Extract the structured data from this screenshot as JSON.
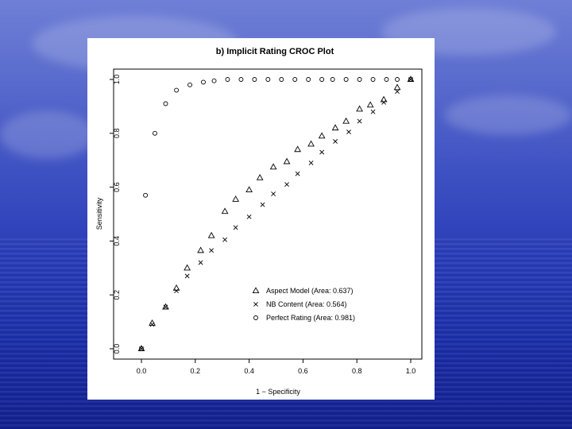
{
  "chart_data": {
    "type": "scatter",
    "title": "b) Implicit Rating CROC Plot",
    "xlabel": "1 − Specificity",
    "ylabel": "Sensitivity",
    "xlim": [
      0,
      1
    ],
    "ylim": [
      0,
      1
    ],
    "x_ticks": [
      "0.0",
      "0.2",
      "0.4",
      "0.6",
      "0.8",
      "1.0"
    ],
    "y_ticks": [
      "0.0",
      "0.2",
      "0.4",
      "0.6",
      "0.8",
      "1.0"
    ],
    "grid": false,
    "legend_position": "bottom-right",
    "series": [
      {
        "name": "Aspect Model (Area: 0.637)",
        "marker": "triangle",
        "points": [
          [
            0.0,
            0.0
          ],
          [
            0.04,
            0.095
          ],
          [
            0.09,
            0.155
          ],
          [
            0.13,
            0.225
          ],
          [
            0.17,
            0.3
          ],
          [
            0.22,
            0.365
          ],
          [
            0.26,
            0.42
          ],
          [
            0.31,
            0.51
          ],
          [
            0.35,
            0.555
          ],
          [
            0.4,
            0.59
          ],
          [
            0.44,
            0.635
          ],
          [
            0.49,
            0.675
          ],
          [
            0.54,
            0.695
          ],
          [
            0.58,
            0.74
          ],
          [
            0.63,
            0.76
          ],
          [
            0.67,
            0.79
          ],
          [
            0.72,
            0.82
          ],
          [
            0.76,
            0.845
          ],
          [
            0.81,
            0.89
          ],
          [
            0.85,
            0.905
          ],
          [
            0.9,
            0.925
          ],
          [
            0.95,
            0.97
          ],
          [
            1.0,
            1.0
          ]
        ]
      },
      {
        "name": "NB Content (Area: 0.564)",
        "marker": "cross",
        "points": [
          [
            0.0,
            0.0
          ],
          [
            0.04,
            0.09
          ],
          [
            0.09,
            0.155
          ],
          [
            0.13,
            0.215
          ],
          [
            0.17,
            0.27
          ],
          [
            0.22,
            0.32
          ],
          [
            0.26,
            0.365
          ],
          [
            0.31,
            0.405
          ],
          [
            0.35,
            0.45
          ],
          [
            0.4,
            0.49
          ],
          [
            0.45,
            0.535
          ],
          [
            0.49,
            0.575
          ],
          [
            0.54,
            0.61
          ],
          [
            0.58,
            0.65
          ],
          [
            0.63,
            0.69
          ],
          [
            0.67,
            0.73
          ],
          [
            0.72,
            0.77
          ],
          [
            0.77,
            0.805
          ],
          [
            0.81,
            0.845
          ],
          [
            0.86,
            0.88
          ],
          [
            0.9,
            0.915
          ],
          [
            0.95,
            0.955
          ],
          [
            1.0,
            1.0
          ]
        ]
      },
      {
        "name": "Perfect Rating  (Area: 0.981)",
        "marker": "circle",
        "points": [
          [
            0.0,
            0.0
          ],
          [
            0.015,
            0.57
          ],
          [
            0.05,
            0.8
          ],
          [
            0.09,
            0.91
          ],
          [
            0.13,
            0.96
          ],
          [
            0.18,
            0.98
          ],
          [
            0.23,
            0.99
          ],
          [
            0.27,
            0.995
          ],
          [
            0.32,
            1.0
          ],
          [
            0.37,
            1.0
          ],
          [
            0.42,
            1.0
          ],
          [
            0.47,
            1.0
          ],
          [
            0.52,
            1.0
          ],
          [
            0.57,
            1.0
          ],
          [
            0.62,
            1.0
          ],
          [
            0.67,
            1.0
          ],
          [
            0.71,
            1.0
          ],
          [
            0.76,
            1.0
          ],
          [
            0.81,
            1.0
          ],
          [
            0.86,
            1.0
          ],
          [
            0.91,
            1.0
          ],
          [
            0.95,
            1.0
          ],
          [
            1.0,
            1.0
          ]
        ]
      }
    ]
  }
}
